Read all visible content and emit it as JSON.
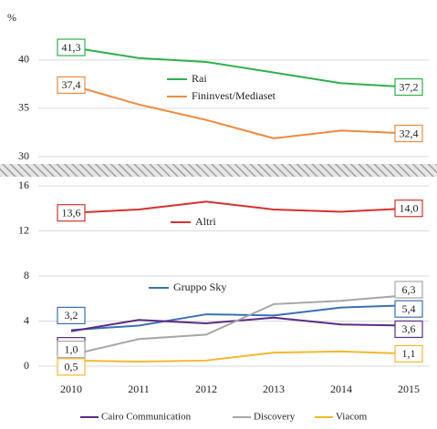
{
  "chart_data": [
    {
      "type": "line",
      "ylabel": "%",
      "ylim": [
        30,
        43
      ],
      "yticks": [
        30,
        35,
        40
      ],
      "grid": true,
      "series": [
        {
          "name": "Rai",
          "color": "#2db24a",
          "values": [
            41.3,
            40.2,
            39.8,
            38.7,
            37.6,
            37.2
          ],
          "value_labels": [
            "41,3",
            null,
            null,
            null,
            null,
            "37,2"
          ]
        },
        {
          "name": "Fininvest/Mediaset",
          "color": "#f08a3c",
          "values": [
            37.4,
            35.4,
            33.8,
            31.9,
            32.7,
            32.4
          ],
          "value_labels": [
            "37,4",
            null,
            null,
            null,
            null,
            "32,4"
          ]
        }
      ]
    },
    {
      "type": "line",
      "categories": [
        "2010",
        "2011",
        "2012",
        "2013",
        "2014",
        "2015"
      ],
      "ylim": [
        0,
        16
      ],
      "yticks": [
        0,
        4,
        8,
        12,
        16
      ],
      "grid": true,
      "series": [
        {
          "name": "Altri",
          "color": "#d7312c",
          "values": [
            13.6,
            13.9,
            14.6,
            13.9,
            13.7,
            14.0
          ],
          "value_labels": [
            "13,6",
            null,
            null,
            null,
            null,
            "14,0"
          ]
        },
        {
          "name": "Gruppo Sky",
          "color": "#3a6fb5",
          "values": [
            3.2,
            3.6,
            4.6,
            4.5,
            5.2,
            5.4
          ],
          "value_labels": [
            "3,2",
            null,
            null,
            null,
            null,
            "5,4"
          ]
        },
        {
          "name": "Cairo Communication",
          "color": "#5b2c83",
          "values": [
            3.1,
            4.1,
            3.8,
            4.3,
            3.7,
            3.6
          ],
          "value_labels": [
            "3,1",
            null,
            null,
            null,
            null,
            "3,6"
          ]
        },
        {
          "name": "Discovery",
          "color": "#a6a6a6",
          "values": [
            1.0,
            2.4,
            2.8,
            5.5,
            5.8,
            6.3
          ],
          "value_labels": [
            "1,0",
            null,
            null,
            null,
            null,
            "6,3"
          ]
        },
        {
          "name": "Viacom",
          "color": "#f5b82e",
          "values": [
            0.5,
            0.4,
            0.5,
            1.2,
            1.3,
            1.1
          ],
          "value_labels": [
            "0,5",
            null,
            null,
            null,
            null,
            "1,1"
          ]
        }
      ]
    }
  ]
}
